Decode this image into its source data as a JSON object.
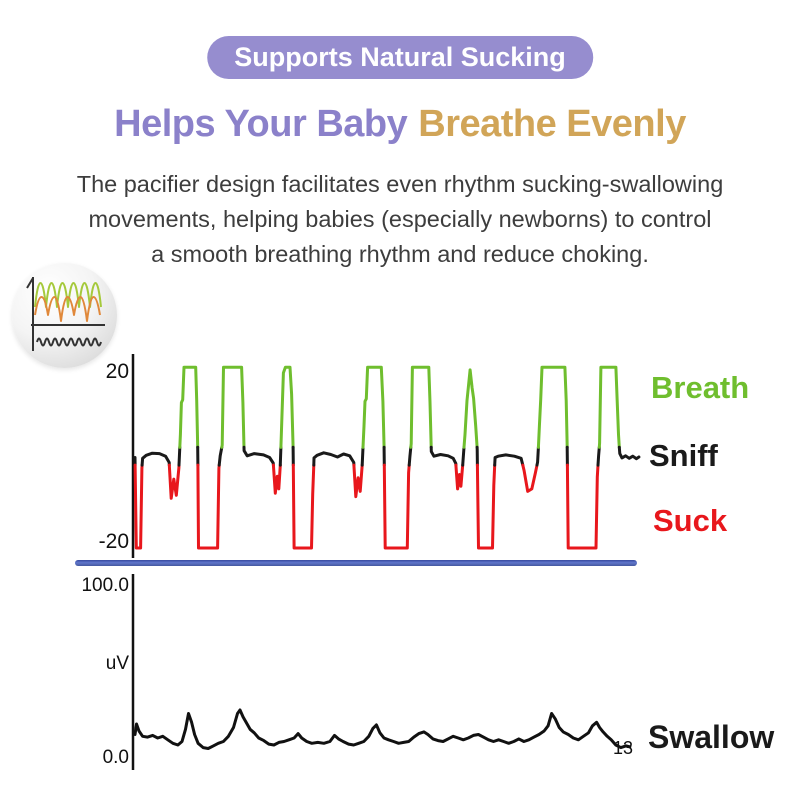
{
  "badge": {
    "label": "Supports Natural Sucking"
  },
  "heading": {
    "part1": "Helps Your Baby",
    "part2": "Breathe Evenly"
  },
  "description": {
    "lines": [
      "The pacifier design facilitates even rhythm sucking-swallowing",
      "movements, helping babies (especially newborns) to control",
      "a smooth breathing rhythm and reduce choking."
    ]
  },
  "colors": {
    "badge_bg": "#968dcf",
    "heading_purple": "#8b81ca",
    "heading_gold": "#d1a558",
    "body_text": "#3d3d3d",
    "breath_green": "#6fbe2e",
    "sniff_black": "#1a1a1a",
    "suck_red": "#e8171c",
    "divider_blue": "#4a61b5",
    "inset_green": "#a5c93b",
    "inset_orange": "#e0883a"
  },
  "chart_data": [
    {
      "id": "suck-sniff-breath-trace",
      "type": "line",
      "y_tick_labels": [
        "20",
        "-20"
      ],
      "y_range": [
        -22,
        22
      ],
      "x_range_percent": [
        0,
        100
      ],
      "grid": false,
      "legend_position": "right",
      "legend": [
        {
          "label": "Breath",
          "color": "#6fbe2e"
        },
        {
          "label": "Sniff",
          "color": "#1a1a1a"
        },
        {
          "label": "Suck",
          "color": "#e8171c"
        }
      ],
      "color_rule": {
        "green_above": 3,
        "red_below": -1.2
      },
      "points": [
        [
          0,
          0.6
        ],
        [
          0.25,
          -20.7
        ],
        [
          1.1,
          -20.7
        ],
        [
          1.35,
          -2
        ],
        [
          1.5,
          0.4
        ],
        [
          2.2,
          1.1
        ],
        [
          3.4,
          1.6
        ],
        [
          4.8,
          1.5
        ],
        [
          6,
          0.9
        ],
        [
          6.7,
          -0.6
        ],
        [
          7.1,
          -9
        ],
        [
          7.6,
          -4.5
        ],
        [
          8.1,
          -8.3
        ],
        [
          8.6,
          -1.8
        ],
        [
          8.9,
          6
        ],
        [
          9.1,
          13.5
        ],
        [
          9.35,
          14.2
        ],
        [
          9.6,
          21.8
        ],
        [
          11.9,
          21.8
        ],
        [
          12.1,
          14
        ],
        [
          12.3,
          3
        ],
        [
          12.45,
          -20.7
        ],
        [
          16.2,
          -20.7
        ],
        [
          16.45,
          -2
        ],
        [
          16.7,
          1
        ],
        [
          17.1,
          3.5
        ],
        [
          17.35,
          21.8
        ],
        [
          20.9,
          21.8
        ],
        [
          21.15,
          13.5
        ],
        [
          21.4,
          2.2
        ],
        [
          22,
          1
        ],
        [
          23.4,
          1.5
        ],
        [
          25.2,
          1.2
        ],
        [
          26.4,
          0.6
        ],
        [
          27.1,
          -0.7
        ],
        [
          27.5,
          -7.8
        ],
        [
          27.9,
          -3.8
        ],
        [
          28.2,
          -6.8
        ],
        [
          28.5,
          -1
        ],
        [
          28.8,
          10
        ],
        [
          29.1,
          20.5
        ],
        [
          29.5,
          21.8
        ],
        [
          30.4,
          21.8
        ],
        [
          30.7,
          15.5
        ],
        [
          31,
          3
        ],
        [
          31.2,
          -20.7
        ],
        [
          34.6,
          -20.7
        ],
        [
          34.85,
          -8
        ],
        [
          35.1,
          0.5
        ],
        [
          35.7,
          1.1
        ],
        [
          37,
          1.7
        ],
        [
          38.4,
          1.3
        ],
        [
          39.7,
          0.7
        ],
        [
          40.9,
          1.4
        ],
        [
          42.1,
          1
        ],
        [
          42.9,
          -0.6
        ],
        [
          43.3,
          -8.6
        ],
        [
          43.75,
          -4.2
        ],
        [
          44.15,
          -7.4
        ],
        [
          44.55,
          -1.2
        ],
        [
          44.9,
          8
        ],
        [
          45.1,
          13.8
        ],
        [
          45.35,
          14.4
        ],
        [
          45.6,
          21.8
        ],
        [
          48.3,
          21.8
        ],
        [
          48.6,
          13.8
        ],
        [
          48.85,
          2.5
        ],
        [
          49.05,
          -20.7
        ],
        [
          53.4,
          -20.7
        ],
        [
          53.65,
          -3
        ],
        [
          53.9,
          0.8
        ],
        [
          54.15,
          3.8
        ],
        [
          54.4,
          21.8
        ],
        [
          57.6,
          21.8
        ],
        [
          57.85,
          13.6
        ],
        [
          58.1,
          2
        ],
        [
          58.6,
          0.9
        ],
        [
          59.9,
          1.3
        ],
        [
          61.4,
          1
        ],
        [
          62.4,
          0.4
        ],
        [
          62.9,
          -0.8
        ],
        [
          63.25,
          -6.8
        ],
        [
          63.6,
          -3.4
        ],
        [
          63.9,
          -6.2
        ],
        [
          64.25,
          -1.2
        ],
        [
          64.7,
          6
        ],
        [
          65.1,
          14
        ],
        [
          65.7,
          21.2
        ],
        [
          66.1,
          17
        ],
        [
          66.4,
          14.5
        ],
        [
          66.8,
          8
        ],
        [
          67.1,
          2.5
        ],
        [
          67.35,
          -20.7
        ],
        [
          70.1,
          -20.7
        ],
        [
          70.35,
          -6
        ],
        [
          70.6,
          0.6
        ],
        [
          71.2,
          0.9
        ],
        [
          72.7,
          1.2
        ],
        [
          74.4,
          0.9
        ],
        [
          75.7,
          0.4
        ],
        [
          76.3,
          -2.5
        ],
        [
          77,
          -7.4
        ],
        [
          77.8,
          -6.8
        ],
        [
          78.5,
          -3
        ],
        [
          78.95,
          -0.5
        ],
        [
          79.3,
          8
        ],
        [
          79.55,
          14.2
        ],
        [
          79.8,
          21.8
        ],
        [
          84.3,
          21.8
        ],
        [
          84.55,
          14
        ],
        [
          84.75,
          2.5
        ],
        [
          84.95,
          -20.7
        ],
        [
          90.4,
          -20.7
        ],
        [
          90.65,
          -4
        ],
        [
          90.9,
          1
        ],
        [
          91.1,
          4
        ],
        [
          91.35,
          21.8
        ],
        [
          94.3,
          21.8
        ],
        [
          94.55,
          13.8
        ],
        [
          94.8,
          6
        ],
        [
          95.05,
          1.5
        ],
        [
          95.5,
          0.5
        ],
        [
          96.2,
          1
        ],
        [
          96.9,
          0.4
        ],
        [
          97.6,
          0.9
        ],
        [
          98.3,
          0.3
        ],
        [
          98.8,
          0.7
        ]
      ]
    },
    {
      "id": "swallow-trace",
      "type": "line",
      "y_tick_labels": [
        "100.0",
        "0.0"
      ],
      "y_axis_unit": "uV",
      "y_range": [
        0,
        100
      ],
      "series_label": "Swallow",
      "end_x_label": "13",
      "line_color": "#111111",
      "grid": false,
      "points": [
        [
          0,
          14
        ],
        [
          0.3,
          20
        ],
        [
          0.8,
          16
        ],
        [
          1.5,
          13
        ],
        [
          2.5,
          12.5
        ],
        [
          3.5,
          13.5
        ],
        [
          4.5,
          12
        ],
        [
          5.5,
          13
        ],
        [
          6.5,
          11
        ],
        [
          7.5,
          9
        ],
        [
          8.5,
          8
        ],
        [
          9.3,
          10
        ],
        [
          10,
          17
        ],
        [
          10.6,
          26
        ],
        [
          11.2,
          21
        ],
        [
          11.8,
          14
        ],
        [
          12.5,
          9
        ],
        [
          13.5,
          6.5
        ],
        [
          14.5,
          6
        ],
        [
          15.5,
          7.5
        ],
        [
          16.5,
          9
        ],
        [
          17.5,
          10
        ],
        [
          18.5,
          13
        ],
        [
          19.5,
          18
        ],
        [
          20.3,
          26
        ],
        [
          20.8,
          28
        ],
        [
          21.4,
          24
        ],
        [
          22,
          21
        ],
        [
          22.8,
          17
        ],
        [
          23.6,
          15
        ],
        [
          24.5,
          12
        ],
        [
          25.5,
          10.5
        ],
        [
          26.5,
          8.5
        ],
        [
          27.5,
          8
        ],
        [
          28.5,
          9.5
        ],
        [
          29.5,
          10
        ],
        [
          30.5,
          11
        ],
        [
          31.5,
          12
        ],
        [
          32.3,
          14.5
        ],
        [
          33,
          12
        ],
        [
          34,
          10
        ],
        [
          35,
          9
        ],
        [
          36.2,
          9.5
        ],
        [
          37.4,
          9
        ],
        [
          38.6,
          10
        ],
        [
          39.5,
          13.5
        ],
        [
          40.3,
          11.5
        ],
        [
          41.2,
          10
        ],
        [
          42.3,
          8.5
        ],
        [
          43.3,
          8
        ],
        [
          44.3,
          9
        ],
        [
          45.3,
          10
        ],
        [
          46.3,
          13
        ],
        [
          47.1,
          17.5
        ],
        [
          47.8,
          19.5
        ],
        [
          48.5,
          15
        ],
        [
          49.3,
          12
        ],
        [
          50.2,
          11
        ],
        [
          51.2,
          10
        ],
        [
          52.2,
          9
        ],
        [
          53.2,
          9.5
        ],
        [
          54.2,
          10
        ],
        [
          55.2,
          12.5
        ],
        [
          56.2,
          14.5
        ],
        [
          57.2,
          15.5
        ],
        [
          58,
          14
        ],
        [
          59,
          11.5
        ],
        [
          60,
          10.5
        ],
        [
          61,
          10
        ],
        [
          62,
          11.5
        ],
        [
          63,
          13
        ],
        [
          64,
          12
        ],
        [
          65,
          11
        ],
        [
          66,
          12
        ],
        [
          67,
          13.5
        ],
        [
          68,
          14
        ],
        [
          69,
          12.5
        ],
        [
          70,
          11
        ],
        [
          71,
          10
        ],
        [
          72,
          11
        ],
        [
          73,
          10
        ],
        [
          74,
          9
        ],
        [
          75,
          10
        ],
        [
          76,
          11.5
        ],
        [
          77,
          10
        ],
        [
          78,
          11
        ],
        [
          79,
          12.5
        ],
        [
          80,
          14
        ],
        [
          81,
          16
        ],
        [
          81.8,
          19
        ],
        [
          82.5,
          26
        ],
        [
          83.2,
          23
        ],
        [
          84,
          18
        ],
        [
          84.8,
          15.5
        ],
        [
          85.8,
          14
        ],
        [
          86.8,
          12
        ],
        [
          87.8,
          11
        ],
        [
          88.8,
          13
        ],
        [
          89.8,
          15
        ],
        [
          90.6,
          19
        ],
        [
          91.4,
          21
        ],
        [
          92,
          18
        ],
        [
          92.7,
          15.5
        ],
        [
          93.5,
          13
        ],
        [
          94.3,
          11
        ],
        [
          95.2,
          8
        ],
        [
          96.2,
          6.5
        ],
        [
          97.2,
          7.5
        ],
        [
          98,
          7
        ]
      ]
    }
  ]
}
